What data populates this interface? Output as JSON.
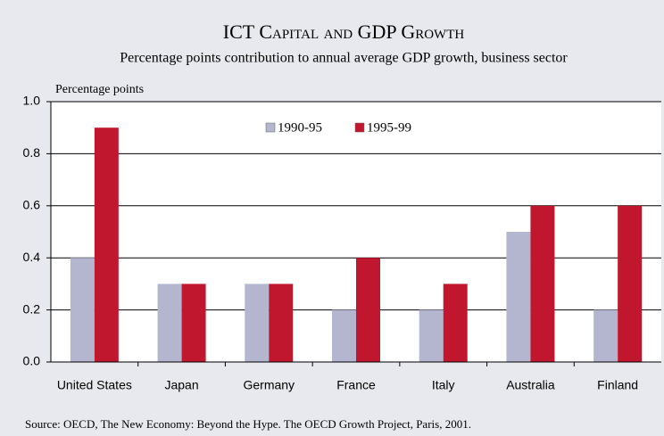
{
  "chart_data": {
    "type": "bar",
    "title": "ICT Capital and GDP Growth",
    "subtitle": "Percentage points contribution to annual average GDP growth, business sector",
    "y_label": "Percentage points",
    "source": "Source: OECD, The New Economy: Beyond the Hype. The OECD Growth Project, Paris, 2001.",
    "categories": [
      "United States",
      "Japan",
      "Germany",
      "France",
      "Italy",
      "Australia",
      "Finland"
    ],
    "series": [
      {
        "name": "1990-95",
        "color": "#b4b6d0",
        "values": [
          0.4,
          0.3,
          0.3,
          0.2,
          0.2,
          0.5,
          0.2
        ]
      },
      {
        "name": "1995-99",
        "color": "#c0172f",
        "values": [
          0.9,
          0.3,
          0.3,
          0.4,
          0.3,
          0.6,
          0.6
        ]
      }
    ],
    "ylim": [
      0,
      1
    ],
    "yticks": [
      {
        "value": 0,
        "label": "0.0"
      },
      0.2,
      0.4,
      0.6,
      0.8,
      {
        "value": 1,
        "label": "1.0"
      }
    ],
    "grid": true
  }
}
